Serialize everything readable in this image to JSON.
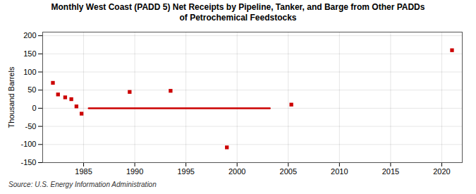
{
  "chart_data": {
    "type": "scatter",
    "title": "Monthly West Coast (PADD 5) Net Receipts by Pipeline, Tanker, and Barge from Other PADDs\nof Petrochemical Feedstocks",
    "ylabel": "Thousand Barrels",
    "source": "Source: U.S. Energy Information Administration",
    "series": [
      {
        "type": "scatter",
        "color": "#cc0000",
        "marker": "square",
        "x": [
          1982.0,
          1982.5,
          1983.2,
          1983.8,
          1984.3,
          1984.8,
          1989.5,
          1993.5,
          1999.0,
          2005.3,
          2021.0
        ],
        "values": [
          70,
          38,
          30,
          25,
          5,
          -15,
          45,
          48,
          -108,
          10,
          160
        ]
      },
      {
        "type": "line",
        "color": "#cc0000",
        "line_style": "solid",
        "x": [
          1985.5,
          2003.2
        ],
        "values": [
          0,
          0
        ]
      }
    ],
    "xlim": [
      1981,
      2022
    ],
    "ylim": [
      -150,
      210
    ],
    "xticks": [
      1985,
      1990,
      1995,
      2000,
      2005,
      2010,
      2015,
      2020
    ],
    "yticks": [
      -150,
      -100,
      -50,
      0,
      50,
      100,
      150,
      200
    ],
    "grid": true
  }
}
